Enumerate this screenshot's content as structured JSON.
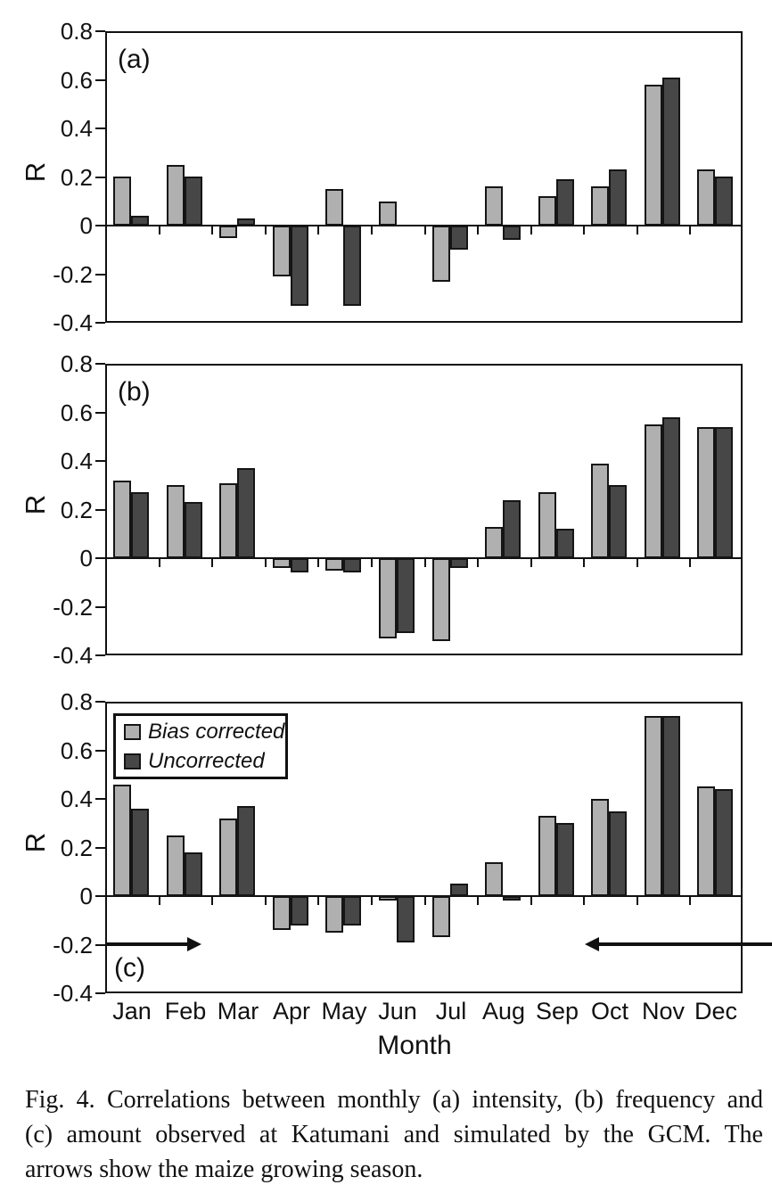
{
  "figure": {
    "x_axis_label": "Month",
    "y_axis_label": "R",
    "caption_lines": [
      "Fig. 4.  Correlations between monthly (a) intensity, (b) frequency and",
      "(c) amount observed at Katumani and simulated by the GCM. The",
      "arrows show the maize growing season."
    ]
  },
  "legend": {
    "items": [
      {
        "label": "Bias corrected",
        "color": "#b0b0b0"
      },
      {
        "label": "Uncorrected",
        "color": "#474747"
      }
    ]
  },
  "colors": {
    "bar_outline": "#151515",
    "axis": "#111111",
    "bias_corrected_fill": "#b0b0b0",
    "uncorrected_fill": "#474747"
  },
  "chart_data": [
    {
      "type": "bar",
      "panel_label": "(a)",
      "measure": "intensity",
      "categories": [
        "Jan",
        "Feb",
        "Mar",
        "Apr",
        "May",
        "Jun",
        "Jul",
        "Aug",
        "Sep",
        "Oct",
        "Nov",
        "Dec"
      ],
      "series": [
        {
          "name": "Bias corrected",
          "values": [
            0.2,
            0.25,
            -0.05,
            -0.21,
            0.15,
            0.1,
            -0.23,
            0.16,
            0.12,
            0.16,
            0.58,
            0.23
          ]
        },
        {
          "name": "Uncorrected",
          "values": [
            0.04,
            0.2,
            0.03,
            -0.33,
            -0.33,
            0.0,
            -0.1,
            -0.06,
            0.19,
            0.23,
            0.61,
            0.2
          ]
        }
      ],
      "ylabel": "R",
      "ylim": [
        -0.4,
        0.8
      ],
      "yticks": [
        0.8,
        0.6,
        0.4,
        0.2,
        0,
        -0.2,
        -0.4
      ],
      "grid": false
    },
    {
      "type": "bar",
      "panel_label": "(b)",
      "measure": "frequency",
      "categories": [
        "Jan",
        "Feb",
        "Mar",
        "Apr",
        "May",
        "Jun",
        "Jul",
        "Aug",
        "Sep",
        "Oct",
        "Nov",
        "Dec"
      ],
      "series": [
        {
          "name": "Bias corrected",
          "values": [
            0.32,
            0.3,
            0.31,
            -0.04,
            -0.05,
            -0.33,
            -0.34,
            0.13,
            0.27,
            0.39,
            0.55,
            0.54
          ]
        },
        {
          "name": "Uncorrected",
          "values": [
            0.27,
            0.23,
            0.37,
            -0.06,
            -0.06,
            -0.31,
            -0.04,
            0.24,
            0.12,
            0.3,
            0.58,
            0.54
          ]
        }
      ],
      "ylabel": "R",
      "ylim": [
        -0.4,
        0.8
      ],
      "yticks": [
        0.8,
        0.6,
        0.4,
        0.2,
        0,
        -0.2,
        -0.4
      ],
      "grid": false
    },
    {
      "type": "bar",
      "panel_label": "(c)",
      "measure": "amount",
      "categories": [
        "Jan",
        "Feb",
        "Mar",
        "Apr",
        "May",
        "Jun",
        "Jul",
        "Aug",
        "Sep",
        "Oct",
        "Nov",
        "Dec"
      ],
      "series": [
        {
          "name": "Bias corrected",
          "values": [
            0.46,
            0.25,
            0.32,
            -0.14,
            -0.15,
            -0.02,
            -0.17,
            0.14,
            0.33,
            0.4,
            0.74,
            0.45
          ]
        },
        {
          "name": "Uncorrected",
          "values": [
            0.36,
            0.18,
            0.37,
            -0.12,
            -0.12,
            -0.19,
            0.05,
            -0.02,
            0.3,
            0.35,
            0.74,
            0.44
          ]
        }
      ],
      "ylabel": "R",
      "ylim": [
        -0.4,
        0.8
      ],
      "yticks": [
        0.8,
        0.6,
        0.4,
        0.2,
        0,
        -0.2,
        -0.4
      ],
      "grid": false,
      "annotations": [
        {
          "type": "arrow",
          "direction": "right",
          "y": -0.2,
          "from_month": "Jan",
          "to_month": "Feb"
        },
        {
          "type": "arrow",
          "direction": "left",
          "y": -0.2,
          "from_month": "beyond Dec",
          "to_month": "Oct"
        }
      ]
    }
  ]
}
